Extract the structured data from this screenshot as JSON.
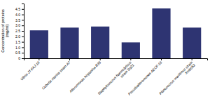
{
  "chart_data": {
    "type": "bar",
    "categories": [
      "Vibrio JT-FAJ-16",
      "Cobetia marina strain A7",
      "Alteromonas hispanica B35",
      "Staphylococcus haemolyticus\nstrain Sq21",
      "Pseudoalteromonas AECF-16",
      "Planococcus maritimus strain\nXmb052"
    ],
    "values": [
      2.55,
      2.8,
      2.9,
      1.45,
      4.55,
      2.8
    ],
    "color": "#2e3472",
    "ylabel": "Concentration of proteins\n(mg/ml)",
    "ylim": [
      0,
      5.0
    ],
    "yticks": [
      0,
      0.5,
      {
        "value": 1.0,
        "label": "1.0"
      },
      1.5,
      {
        "value": 2.0,
        "label": "2.0"
      },
      2.5,
      {
        "value": 3.0,
        "label": "3.0"
      },
      3.5,
      {
        "value": 4.0,
        "label": "4.0"
      },
      4.5
    ]
  }
}
